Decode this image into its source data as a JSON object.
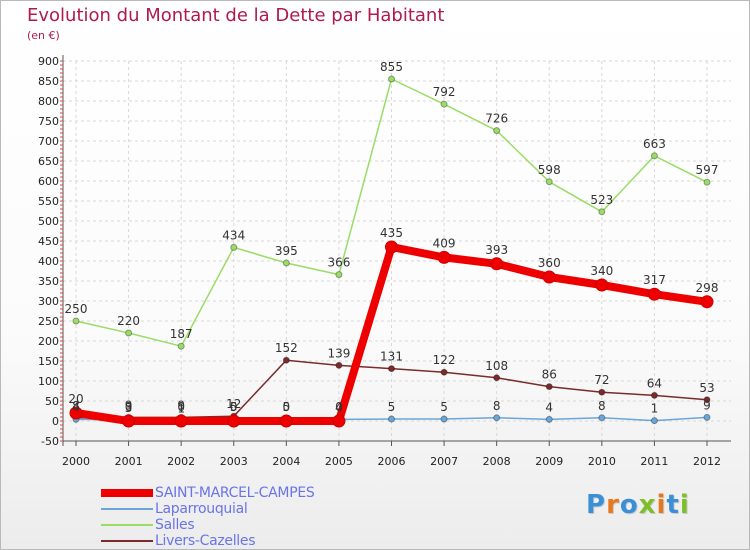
{
  "title": "Evolution du Montant de la Dette par Habitant",
  "unit": "(en €)",
  "logo": {
    "text": "Proxiti",
    "colors": [
      "#3b8fd6",
      "#e8781e",
      "#3b8fd6",
      "#7cbf2a",
      "#e8781e",
      "#3b8fd6",
      "#7cbf2a"
    ]
  },
  "chart_data": {
    "type": "line",
    "x": [
      "2000",
      "2001",
      "2002",
      "2003",
      "2004",
      "2005",
      "2006",
      "2007",
      "2008",
      "2009",
      "2010",
      "2011",
      "2012"
    ],
    "ylim": [
      -50,
      900
    ],
    "yticks": [
      "-50",
      "0",
      "50",
      "100",
      "150",
      "200",
      "250",
      "300",
      "350",
      "400",
      "450",
      "500",
      "550",
      "600",
      "650",
      "700",
      "750",
      "800",
      "850",
      "900"
    ],
    "grid": true,
    "legend_position": "bottom-left",
    "series": [
      {
        "name": "SAINT-MARCEL-CAMPES",
        "color": "#ee0000",
        "values": [
          20,
          0,
          0,
          0,
          0,
          0,
          435,
          409,
          393,
          360,
          340,
          317,
          298
        ],
        "labels": [
          "20",
          "0",
          "0",
          "0",
          "0",
          "0",
          "435",
          "409",
          "393",
          "360",
          "340",
          "317",
          "298"
        ]
      },
      {
        "name": "Laparrouquial",
        "color": "#6aa6d9",
        "values": [
          4,
          3,
          1,
          5,
          5,
          4,
          5,
          5,
          8,
          4,
          8,
          1,
          9
        ],
        "labels": [
          "4",
          "3",
          "1",
          "5",
          "5",
          "4",
          "5",
          "5",
          "8",
          "4",
          "8",
          "1",
          "9"
        ]
      },
      {
        "name": "Salles",
        "color": "#99dd66",
        "values": [
          250,
          220,
          187,
          434,
          395,
          366,
          855,
          792,
          726,
          598,
          523,
          663,
          597
        ],
        "labels": [
          "250",
          "220",
          "187",
          "434",
          "395",
          "366",
          "855",
          "792",
          "726",
          "598",
          "523",
          "663",
          "597"
        ]
      },
      {
        "name": "Livers-Cazelles",
        "color": "#7a2b2b",
        "values": [
          8,
          9,
          9,
          12,
          152,
          139,
          131,
          122,
          108,
          86,
          72,
          64,
          53
        ],
        "labels": [
          "8",
          "9",
          "9",
          "12",
          "152",
          "139",
          "131",
          "122",
          "108",
          "86",
          "72",
          "64",
          "53"
        ]
      }
    ]
  }
}
